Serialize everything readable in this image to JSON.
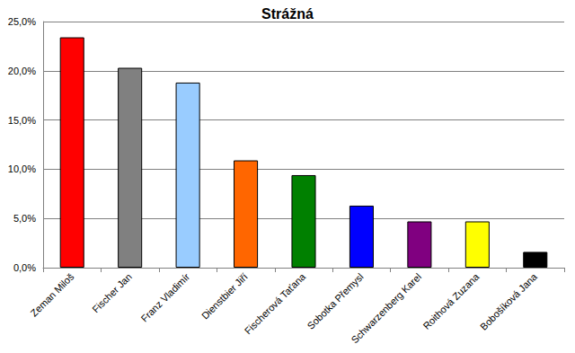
{
  "chart_data": {
    "type": "bar",
    "title": "Strážná",
    "categories": [
      "Zeman Miloš",
      "Fischer Jan",
      "Franz Vladimír",
      "Dienstbier Jiří",
      "Fischerová Taťana",
      "Sobotka Přemysl",
      "Schwarzenberg Karel",
      "Roithová Zuzana",
      "Bobošíková Jana"
    ],
    "values": [
      23.4,
      20.3,
      18.8,
      10.9,
      9.4,
      6.3,
      4.7,
      4.7,
      1.6
    ],
    "colors": [
      "#ff0000",
      "#808080",
      "#99ccff",
      "#ff6600",
      "#008000",
      "#0000ff",
      "#800080",
      "#ffff00",
      "#000000"
    ],
    "ylim": [
      0,
      25
    ],
    "yticks": [
      {
        "value": 0,
        "label": "0,0%"
      },
      {
        "value": 5,
        "label": "5,0%"
      },
      {
        "value": 10,
        "label": "10,0%"
      },
      {
        "value": 15,
        "label": "15,0%"
      },
      {
        "value": 20,
        "label": "20,0%"
      },
      {
        "value": 25,
        "label": "25,0%"
      }
    ],
    "grid": true
  }
}
